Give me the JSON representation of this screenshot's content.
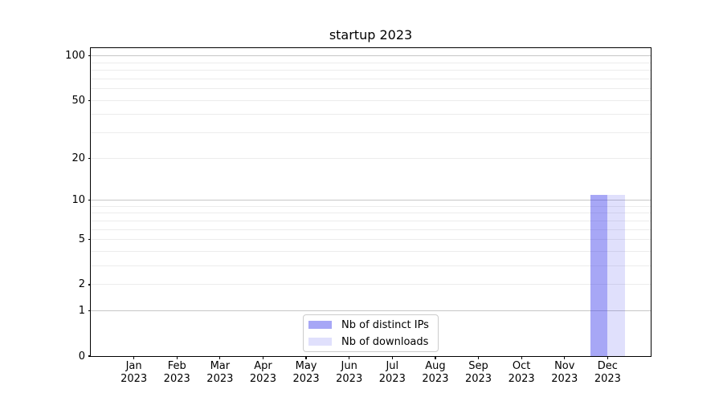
{
  "chart_data": {
    "type": "bar",
    "title": "startup 2023",
    "categories": [
      "Jan",
      "Feb",
      "Mar",
      "Apr",
      "May",
      "Jun",
      "Jul",
      "Aug",
      "Sep",
      "Oct",
      "Nov",
      "Dec"
    ],
    "category_year": "2023",
    "series": [
      {
        "name": "Nb of distinct IPs",
        "color": "rgba(60,60,235,0.45)",
        "values": [
          0,
          0,
          0,
          0,
          0,
          0,
          0,
          0,
          0,
          0,
          0,
          11
        ]
      },
      {
        "name": "Nb of downloads",
        "color": "rgba(60,60,235,0.16)",
        "values": [
          0,
          0,
          0,
          0,
          0,
          0,
          0,
          0,
          0,
          0,
          0,
          11
        ]
      }
    ],
    "yscale": "log1p",
    "ylim": [
      0,
      113
    ],
    "xlim": [
      -1,
      12
    ],
    "yticks": [
      0,
      1,
      2,
      5,
      10,
      20,
      50,
      100
    ],
    "minor_gridlines": [
      3,
      4,
      6,
      7,
      8,
      9,
      30,
      40,
      60,
      70,
      80,
      90
    ],
    "major_gridlines": [
      1,
      10,
      100
    ],
    "bar_width": 0.4,
    "grid": true,
    "legend_position": "lower center"
  },
  "colors": {
    "major_grid": "#c6c6c6",
    "minor_grid": "#ececec",
    "spine": "#000000",
    "text": "#000000",
    "legend_border": "#cccccc",
    "background": "#ffffff"
  }
}
